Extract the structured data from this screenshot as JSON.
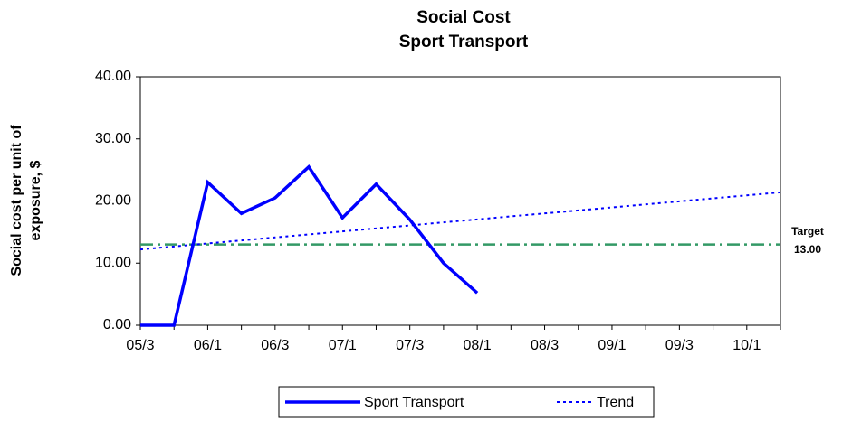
{
  "chart_data": {
    "type": "line",
    "title": [
      "Social Cost",
      "Sport Transport"
    ],
    "y_label": [
      "Social cost per unit of",
      "exposure, $"
    ],
    "categories": [
      "05/3",
      null,
      "06/1",
      null,
      "06/3",
      null,
      "07/1",
      null,
      "07/3",
      null,
      "08/1",
      null,
      "08/3",
      null,
      "09/1",
      null,
      "09/3",
      null,
      "10/1",
      null
    ],
    "series": [
      {
        "name": "Sport Transport",
        "color": "#0000ff",
        "style": "solid",
        "values": [
          0,
          0,
          23,
          18,
          20.5,
          25.5,
          17.3,
          22.7,
          17,
          10,
          5.2,
          null,
          null,
          null,
          null,
          null,
          null,
          null,
          null,
          null
        ]
      },
      {
        "name": "Trend",
        "color": "#0000ff",
        "style": "dotted",
        "values": [
          12.2,
          12.68,
          13.17,
          13.65,
          14.14,
          14.62,
          15.11,
          15.59,
          16.07,
          16.56,
          17.04,
          17.53,
          18.01,
          18.49,
          18.98,
          19.46,
          19.95,
          20.43,
          20.91,
          21.4
        ]
      }
    ],
    "target": {
      "label": "Target",
      "value": 13,
      "value_label": "13.00",
      "color": "#339966"
    },
    "ylim": [
      0,
      40
    ],
    "yticks": [
      {
        "value": 0,
        "label": "0.00"
      },
      {
        "value": 10,
        "label": "10.00"
      },
      {
        "value": 20,
        "label": "20.00"
      },
      {
        "value": 30,
        "label": "30.00"
      },
      {
        "value": 40,
        "label": "40.00"
      }
    ],
    "grid": false
  }
}
